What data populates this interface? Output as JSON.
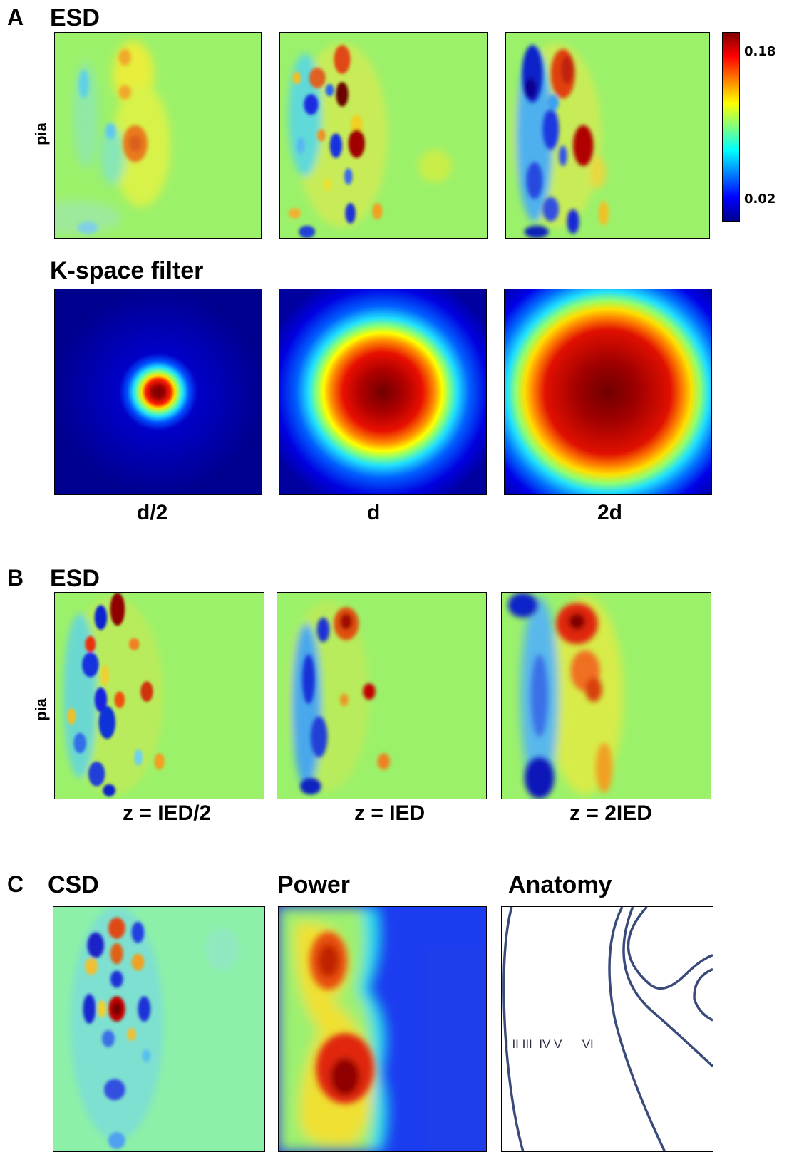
{
  "panel_A": {
    "letter": "A",
    "esd_title": "ESD",
    "ylabel": "pia",
    "kspace_title": "K-space filter",
    "captions": [
      "d/2",
      "d",
      "2d"
    ],
    "colorbar": {
      "max_label": "0.18",
      "min_label": "0.02",
      "colormap": "jet"
    }
  },
  "panel_B": {
    "letter": "B",
    "esd_title": "ESD",
    "ylabel": "pia",
    "captions": [
      "z = IED/2",
      "z = IED",
      "z = 2IED"
    ]
  },
  "panel_C": {
    "letter": "C",
    "titles": [
      "CSD",
      "Power",
      "Anatomy"
    ],
    "layer_labels": "I II III  IV V      VI"
  },
  "colors": {
    "jet_low": "#00008f",
    "jet_mid": "#7fff7f",
    "jet_high": "#800000",
    "anatomy_line": "#3a4a7a"
  }
}
